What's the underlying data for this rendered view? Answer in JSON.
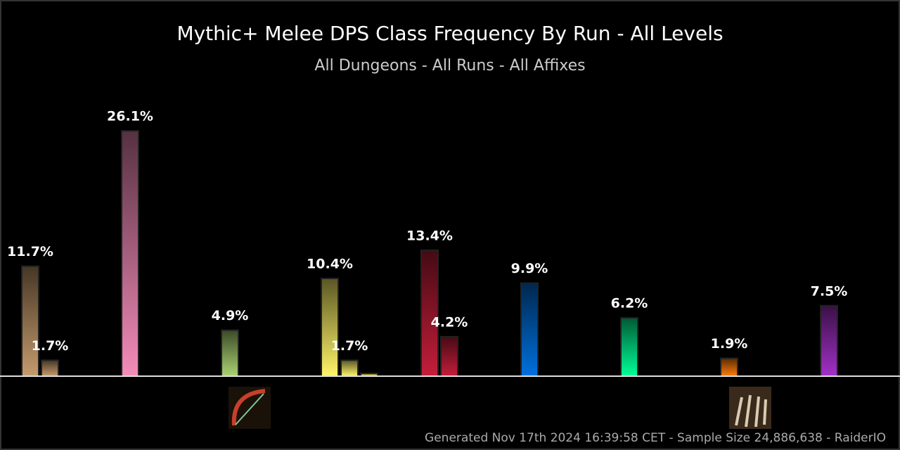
{
  "chart_data": {
    "type": "bar",
    "title": "Mythic+ Melee DPS Class Frequency By Run - All Levels",
    "subtitle": "All Dungeons - All Runs - All Affixes",
    "footer": "Generated Nov 17th 2024 16:39:58 CET - Sample Size 24,886,638 - RaiderIO",
    "categories": [
      null,
      null,
      null,
      null,
      null,
      null,
      null,
      null,
      null
    ],
    "colors": [
      "#c69b6d",
      "#f48cba",
      "#aad372",
      "#fff468",
      "#c41e3a",
      "#0070dd",
      "#00ff98",
      "#ff7c0a",
      "#a330c9"
    ],
    "ylim": [
      0,
      30
    ],
    "series": [
      {
        "values": [
          11.7,
          26.1,
          4.9,
          10.4,
          13.4,
          9.9,
          6.2,
          1.9,
          7.5
        ],
        "value_labels": [
          "11.7%",
          "26.1%",
          "4.9%",
          "10.4%",
          "13.4%",
          "9.9%",
          "6.2%",
          "1.9%",
          "7.5%"
        ]
      },
      {
        "values": [
          1.7,
          null,
          null,
          1.7,
          4.2,
          null,
          null,
          null,
          null
        ],
        "value_labels": [
          "1.7%",
          null,
          null,
          "1.7%",
          "4.2%",
          null,
          null,
          null,
          null
        ]
      },
      {
        "values": [
          null,
          null,
          null,
          0.3,
          null,
          null,
          null,
          null,
          null
        ],
        "value_labels": [
          null,
          null,
          null,
          null,
          null,
          null,
          null,
          null,
          null
        ]
      }
    ]
  }
}
